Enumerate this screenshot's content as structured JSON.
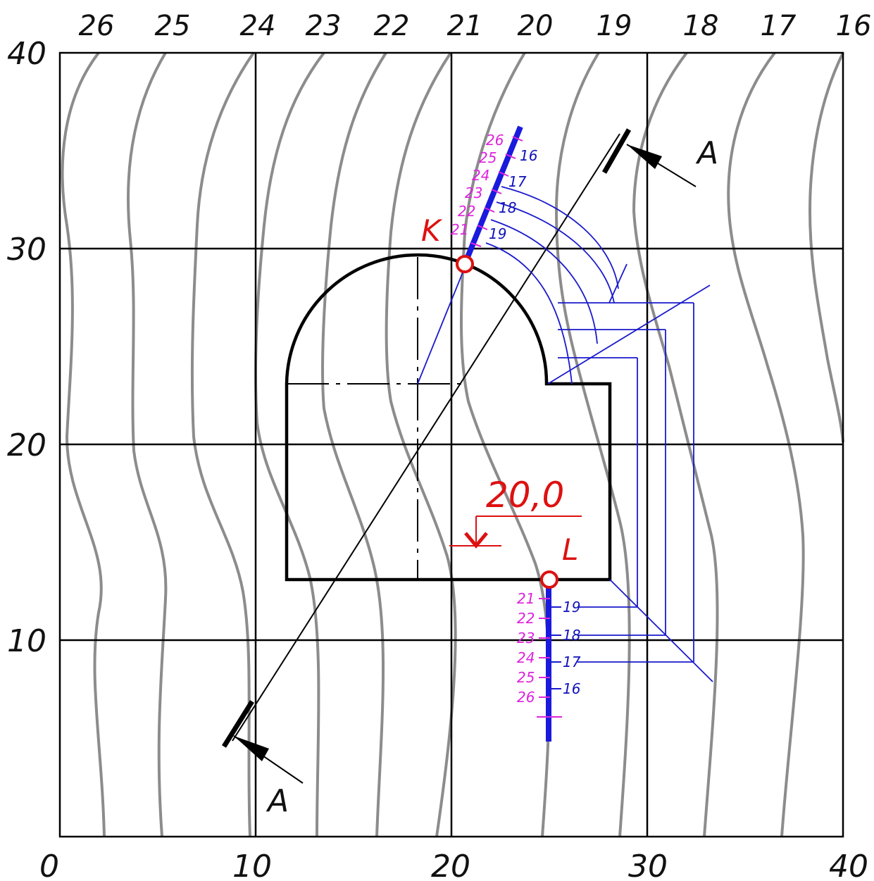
{
  "colors": {
    "background": "#ffffff",
    "grid": "#000000",
    "contour": "#8c8c8c",
    "outline": "#000000",
    "construction": "#1a1acc",
    "scale_bar": "#1a1add",
    "scale_marks_left": "#dd22dd",
    "point_markers": "#dd1111"
  },
  "axes": {
    "x_labels": [
      "0",
      "10",
      "20",
      "30",
      "40"
    ],
    "y_labels": [
      "10",
      "20",
      "30",
      "40"
    ]
  },
  "contour_labels": [
    "26",
    "25",
    "24",
    "23",
    "22",
    "21",
    "20",
    "19",
    "18",
    "17",
    "16"
  ],
  "points": {
    "k": "K",
    "l": "L"
  },
  "section": {
    "label_top": "A",
    "label_bottom": "A"
  },
  "elevation_mark": "20,0",
  "scale_k": {
    "left_marks": [
      "26",
      "25",
      "24",
      "23",
      "22",
      "21"
    ],
    "right_marks": [
      "16",
      "17",
      "18",
      "19"
    ]
  },
  "scale_l": {
    "left_marks": [
      "21",
      "22",
      "23",
      "24",
      "25",
      "26"
    ],
    "right_marks": [
      "19",
      "18",
      "17",
      "16"
    ]
  },
  "icons": {
    "point_marker": "open-circle",
    "section_arrow": "filled-arrowhead",
    "elevation_mark": "downward-arrow"
  }
}
